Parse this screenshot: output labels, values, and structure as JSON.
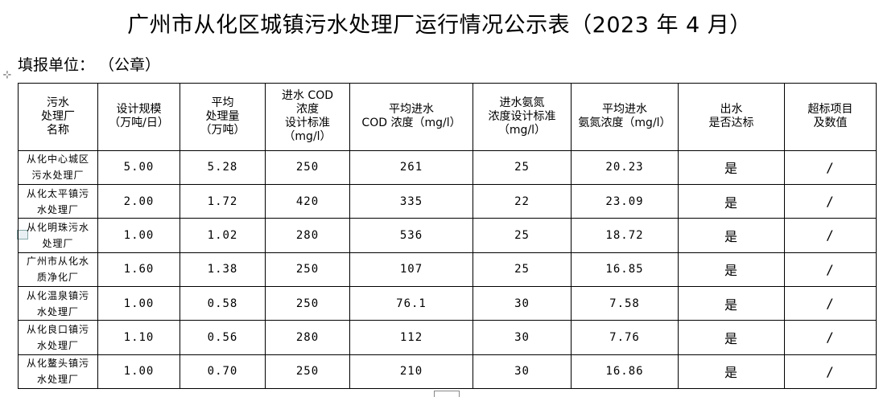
{
  "title": "广州市从化区城镇污水处理厂运行情况公示表（2023 年 4 月）",
  "unit_line": "填报单位：  （公章）",
  "icons": {
    "move_handle": "⊹"
  },
  "table": {
    "headers": [
      "污水\n处理厂\n名称",
      "设计规模\n（万吨/日）",
      "平均\n处理量\n（万吨）",
      "进水 COD\n浓度\n设计标准\n（mg/l）",
      "平均进水\nCOD 浓度（mg/l）",
      "进水氨氮\n浓度设计标准\n（mg/l）",
      "平均进水\n氨氮浓度（mg/l）",
      "出水\n是否达标",
      "超标项目\n及数值"
    ],
    "rows": [
      [
        "从化中心城区\n污水处理厂",
        "5.00",
        "5.28",
        "250",
        "261",
        "25",
        "20.23",
        "是",
        "/"
      ],
      [
        "从化太平镇污\n水处理厂",
        "2.00",
        "1.72",
        "420",
        "335",
        "22",
        "23.09",
        "是",
        "/"
      ],
      [
        "从化明珠污水\n处理厂",
        "1.00",
        "1.02",
        "280",
        "536",
        "25",
        "18.72",
        "是",
        "/"
      ],
      [
        "广州市从化水\n质净化厂",
        "1.60",
        "1.38",
        "250",
        "107",
        "25",
        "16.85",
        "是",
        "/"
      ],
      [
        "从化温泉镇污\n水处理厂",
        "1.00",
        "0.58",
        "250",
        "76.1",
        "30",
        "7.58",
        "是",
        "/"
      ],
      [
        "从化良口镇污\n水处理厂",
        "1.10",
        "0.56",
        "280",
        "112",
        "30",
        "7.76",
        "是",
        "/"
      ],
      [
        "从化鳌头镇污\n水处理厂",
        "1.00",
        "0.70",
        "250",
        "210",
        "30",
        "16.86",
        "是",
        "/"
      ]
    ]
  }
}
